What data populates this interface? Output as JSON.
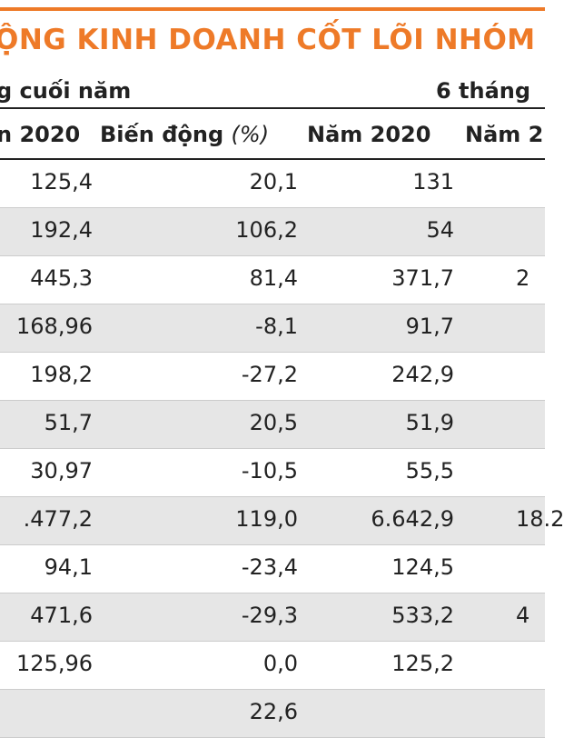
{
  "title": "ỘNG KINH DOANH CỐT LÕI NHÓM",
  "colors": {
    "accent": "#ee7a28",
    "row_shade": "#e6e6e6"
  },
  "group_headers": {
    "left": "g cuối năm",
    "right": "6 tháng"
  },
  "columns": {
    "c1": "n 2020",
    "c2_main": "Biến động",
    "c2_unit": "(%)",
    "c3": "Năm 2020",
    "c4": "Năm 2"
  },
  "rows": [
    {
      "c1": "125,4",
      "c2": "20,1",
      "c3": "131",
      "c4": ""
    },
    {
      "c1": "192,4",
      "c2": "106,2",
      "c3": "54",
      "c4": ""
    },
    {
      "c1": "445,3",
      "c2": "81,4",
      "c3": "371,7",
      "c4": "2"
    },
    {
      "c1": "168,96",
      "c2": "-8,1",
      "c3": "91,7",
      "c4": ""
    },
    {
      "c1": "198,2",
      "c2": "-27,2",
      "c3": "242,9",
      "c4": ""
    },
    {
      "c1": "51,7",
      "c2": "20,5",
      "c3": "51,9",
      "c4": ""
    },
    {
      "c1": "30,97",
      "c2": "-10,5",
      "c3": "55,5",
      "c4": ""
    },
    {
      "c1": ".477,2",
      "c2": "119,0",
      "c3": "6.642,9",
      "c4": "18.2"
    },
    {
      "c1": "94,1",
      "c2": "-23,4",
      "c3": "124,5",
      "c4": ""
    },
    {
      "c1": "471,6",
      "c2": "-29,3",
      "c3": "533,2",
      "c4": "4"
    },
    {
      "c1": "125,96",
      "c2": "0,0",
      "c3": "125,2",
      "c4": ""
    },
    {
      "c1": "",
      "c2": "22,6",
      "c3": "",
      "c4": ""
    }
  ]
}
